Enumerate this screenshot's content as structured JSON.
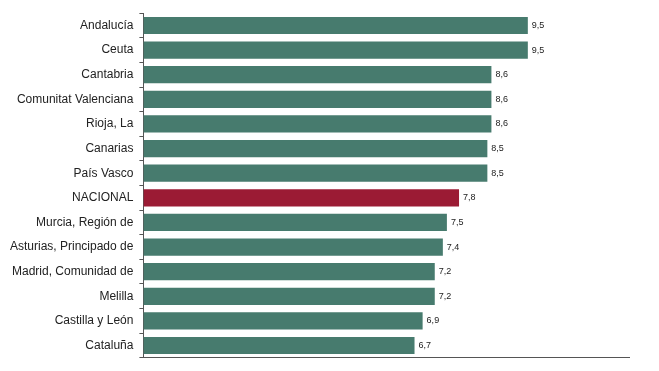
{
  "chart_data": {
    "type": "bar",
    "orientation": "horizontal",
    "categories": [
      "Andalucía",
      "Ceuta",
      "Cantabria",
      "Comunitat Valenciana",
      "Rioja, La",
      "Canarias",
      "País Vasco",
      "NACIONAL",
      "Murcia, Región de",
      "Asturias, Principado de",
      "Madrid, Comunidad de",
      "Melilla",
      "Castilla y León",
      "Cataluña"
    ],
    "values": [
      9.5,
      9.5,
      8.6,
      8.6,
      8.6,
      8.5,
      8.5,
      7.8,
      7.5,
      7.4,
      7.2,
      7.2,
      6.9,
      6.7
    ],
    "value_labels": [
      "9,5",
      "9,5",
      "8,6",
      "8,6",
      "8,6",
      "8,5",
      "8,5",
      "7,8",
      "7,5",
      "7,4",
      "7,2",
      "7,2",
      "6,9",
      "6,7"
    ],
    "colors": [
      "#477b6e",
      "#477b6e",
      "#477b6e",
      "#477b6e",
      "#477b6e",
      "#477b6e",
      "#477b6e",
      "#9b1b34",
      "#477b6e",
      "#477b6e",
      "#477b6e",
      "#477b6e",
      "#477b6e",
      "#477b6e"
    ],
    "xlim": [
      0,
      12
    ],
    "data_labels": true,
    "tick_labels": "y",
    "grid": false
  }
}
